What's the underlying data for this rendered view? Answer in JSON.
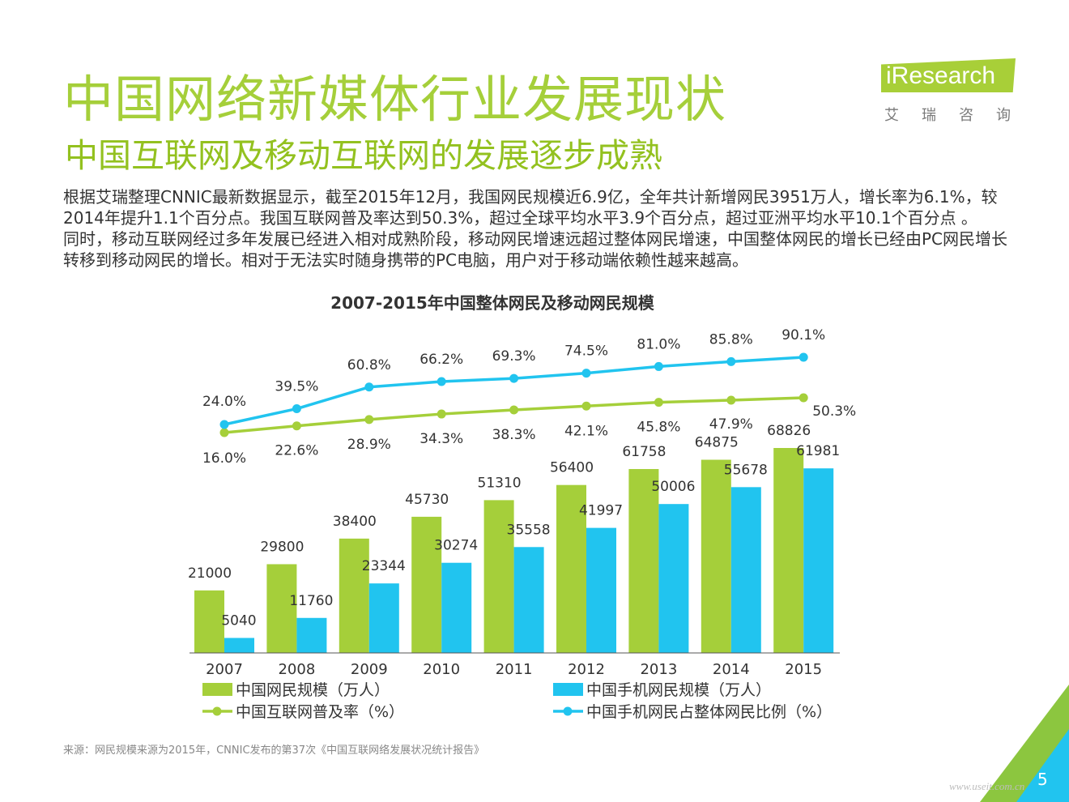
{
  "slide": {
    "title": "中国网络新媒体行业发展现状",
    "subtitle": "中国互联网及移动互联网的发展逐步成熟",
    "paragraphs": [
      "根据艾瑞整理CNNIC最新数据显示，截至2015年12月，我国网民规模近6.9亿，全年共计新增网民3951万人，增长率为6.1%，较2014年提升1.1个百分点。我国互联网普及率达到50.3%，超过全球平均水平3.9个百分点，超过亚洲平均水平10.1个百分点 。",
      "同时，移动互联网经过多年发展已经进入相对成熟阶段，移动网民增速远超过整体网民增速，中国整体网民的增长已经由PC网民增长转移到移动网民的增长。相对于无法实时随身携带的PC电脑，用户对于移动端依赖性越来越高。"
    ],
    "source": "来源：网民规模来源为2015年，CNNIC发布的第37次《中国互联网络发展状况统计报告》",
    "page_number": "5",
    "watermark": "www.useit.com.cn"
  },
  "logo": {
    "text": "Research",
    "cn": "艾瑞咨询"
  },
  "colors": {
    "green": "#a5cf3a",
    "blue": "#21c4ef"
  },
  "chart_data": {
    "type": "bar",
    "title": "2007-2015年中国整体网民及移动网民规模",
    "categories": [
      "2007",
      "2008",
      "2009",
      "2010",
      "2011",
      "2012",
      "2013",
      "2014",
      "2015"
    ],
    "series": [
      {
        "name": "中国网民规模（万人）",
        "kind": "bar",
        "color": "#a5cf3a",
        "values": [
          21000,
          29800,
          38400,
          45730,
          51310,
          56400,
          61758,
          64875,
          68826
        ]
      },
      {
        "name": "中国手机网民规模（万人）",
        "kind": "bar",
        "color": "#21c4ef",
        "values": [
          5040,
          11760,
          23344,
          30274,
          35558,
          41997,
          50006,
          55678,
          61981
        ]
      },
      {
        "name": "中国互联网普及率（%）",
        "kind": "line",
        "color": "#a5cf3a",
        "values": [
          16.0,
          22.6,
          28.9,
          34.3,
          38.3,
          42.1,
          45.8,
          47.9,
          50.3
        ]
      },
      {
        "name": "中国手机网民占整体网民比例（%）",
        "kind": "line",
        "color": "#21c4ef",
        "values": [
          24.0,
          39.5,
          60.8,
          66.2,
          69.3,
          74.5,
          81.0,
          85.8,
          90.1
        ]
      }
    ],
    "bar_ylim": [
      0,
      70000
    ],
    "legend": "bottom",
    "grid": false
  }
}
